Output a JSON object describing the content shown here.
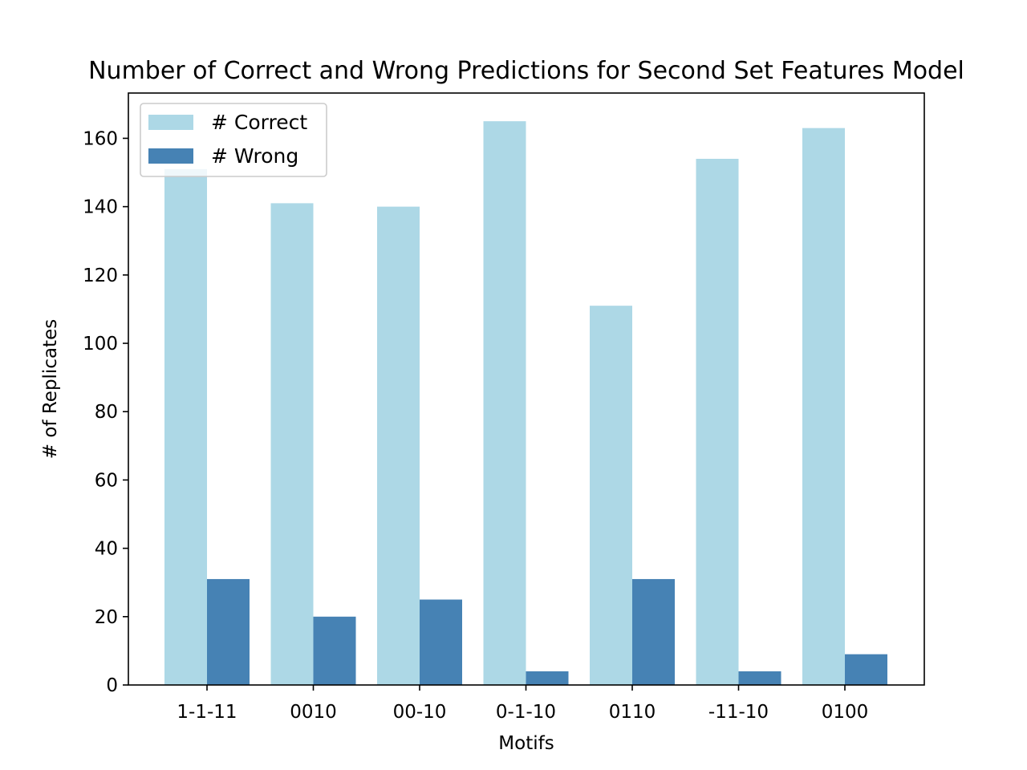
{
  "chart_data": {
    "type": "bar",
    "title": "Number of Correct and Wrong Predictions for Second Set Features Model",
    "xlabel": "Motifs",
    "ylabel": "# of Replicates",
    "categories": [
      "1-1-11",
      "0010",
      "00-10",
      "0-1-10",
      "0110",
      "-11-10",
      "0100"
    ],
    "series": [
      {
        "name": "# Correct",
        "color": "#add8e6",
        "values": [
          151,
          141,
          140,
          165,
          111,
          154,
          163
        ]
      },
      {
        "name": "# Wrong",
        "color": "#4682b4",
        "values": [
          31,
          20,
          25,
          4,
          31,
          4,
          9
        ]
      }
    ],
    "ylim": [
      0,
      173.25
    ],
    "yticks": [
      0,
      20,
      40,
      60,
      80,
      100,
      120,
      140,
      160
    ],
    "grid": false,
    "legend": "top-left"
  }
}
